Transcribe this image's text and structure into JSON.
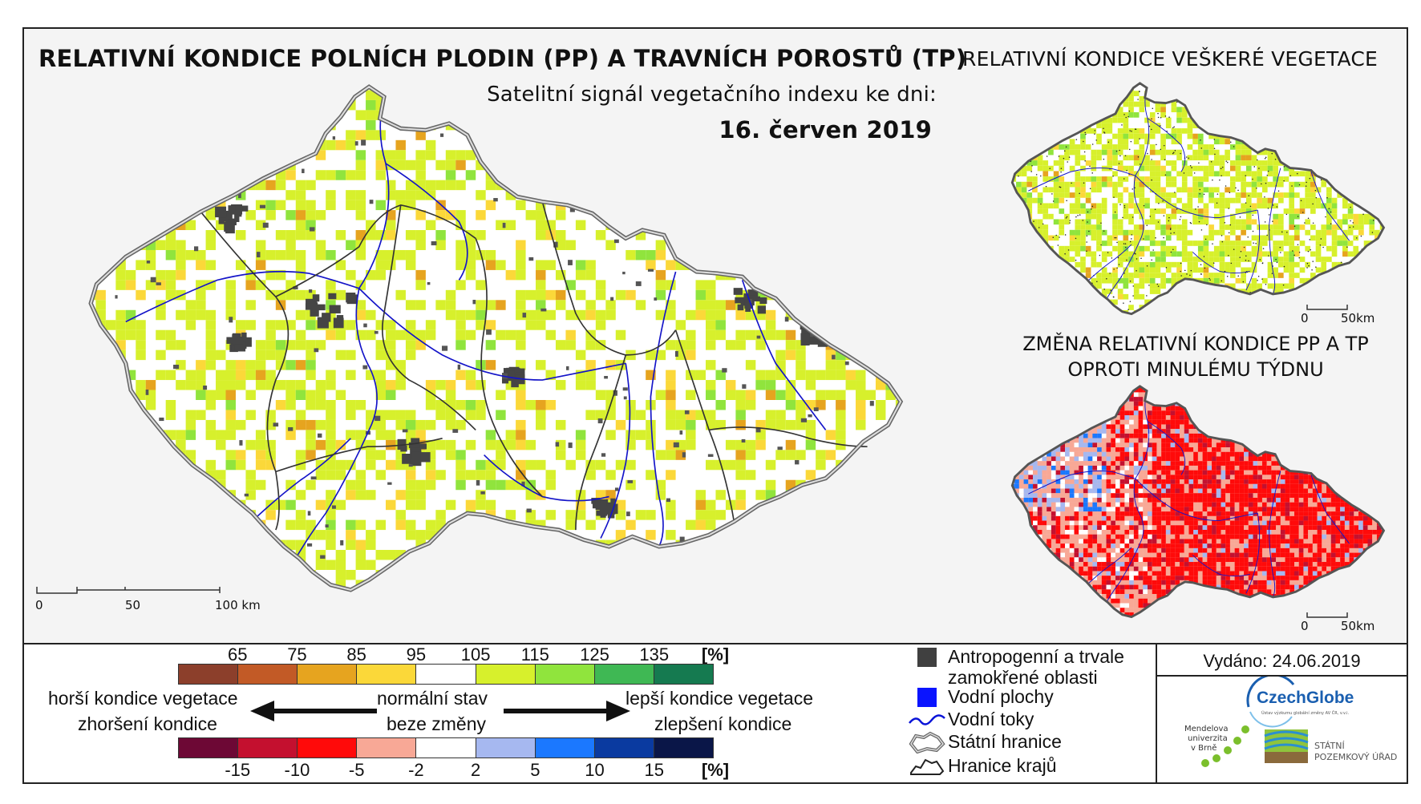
{
  "header": {
    "main_title": "RELATIVNÍ KONDICE POLNÍCH PLODIN (PP) A TRAVNÍCH POROSTŮ (TP)",
    "subtitle": "Satelitní signál vegetačního indexu ke dni:",
    "date": "16. červen 2019"
  },
  "insets": {
    "vegetation_title": "RELATIVNÍ KONDICE VEŠKERÉ VEGETACE",
    "change_title_line1": "ZMĚNA RELATIVNÍ KONDICE PP A TP",
    "change_title_line2": "OPROTI MINULÉMU TÝDNU"
  },
  "scalebars": {
    "main": {
      "labels": [
        "0",
        "50",
        "100 km"
      ]
    },
    "inset": {
      "labels": [
        "0",
        "50km"
      ]
    }
  },
  "legend": {
    "condition": {
      "ticks": [
        "65",
        "75",
        "85",
        "95",
        "105",
        "115",
        "125",
        "135"
      ],
      "unit": "[%]",
      "colors": [
        "#8c3f2b",
        "#c25a26",
        "#e6a41f",
        "#fbd839",
        "#ffffff",
        "#d7f02c",
        "#90e43d",
        "#3fb854",
        "#157a50"
      ]
    },
    "change": {
      "ticks": [
        "-15",
        "-10",
        "-5",
        "-2",
        "2",
        "5",
        "10",
        "15"
      ],
      "unit": "[%]",
      "colors": [
        "#6d0835",
        "#c4102f",
        "#ff0a0a",
        "#f8a896",
        "#ffffff",
        "#a6b8f0",
        "#1b78ff",
        "#0a3aa0",
        "#0a1648"
      ]
    },
    "left_line1": "horší kondice vegetace",
    "left_line2": "zhoršení kondice",
    "center_line1": "normální stav",
    "center_line2": "beze změny",
    "right_line1": "lepší kondice vegetace",
    "right_line2": "zlepšení kondice"
  },
  "map_key": {
    "anthropogenic_line1": "Antropogenní a trvale",
    "anthropogenic_line2": "zamokřené oblasti",
    "water_bodies": "Vodní plochy",
    "rivers": "Vodní toky",
    "state_border": "Státní hranice",
    "region_border": "Hranice krajů",
    "colors": {
      "anthropogenic": "#404040",
      "water": "#0a14ff",
      "river": "#0a14d8"
    }
  },
  "issued": "Vydáno: 24.06.2019",
  "logos": {
    "czechglobe": "CzechGlobe",
    "czechglobe_sub": "Ústav výzkumu globální změny AV ČR, v.v.i.",
    "mendel": [
      "Mendelova",
      "univerzita",
      "v Brně"
    ],
    "spu": [
      "STÁTNÍ",
      "POZEMKOVÝ ÚŘAD"
    ]
  }
}
